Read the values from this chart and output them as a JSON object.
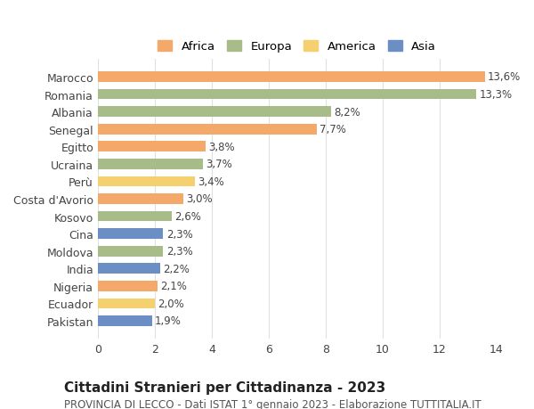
{
  "countries": [
    "Marocco",
    "Romania",
    "Albania",
    "Senegal",
    "Egitto",
    "Ucraina",
    "Perù",
    "Costa d'Avorio",
    "Kosovo",
    "Cina",
    "Moldova",
    "India",
    "Nigeria",
    "Ecuador",
    "Pakistan"
  ],
  "values": [
    13.6,
    13.3,
    8.2,
    7.7,
    3.8,
    3.7,
    3.4,
    3.0,
    2.6,
    2.3,
    2.3,
    2.2,
    2.1,
    2.0,
    1.9
  ],
  "labels": [
    "13,6%",
    "13,3%",
    "8,2%",
    "7,7%",
    "3,8%",
    "3,7%",
    "3,4%",
    "3,0%",
    "2,6%",
    "2,3%",
    "2,3%",
    "2,2%",
    "2,1%",
    "2,0%",
    "1,9%"
  ],
  "continents": [
    "Africa",
    "Europa",
    "Europa",
    "Africa",
    "Africa",
    "Europa",
    "America",
    "Africa",
    "Europa",
    "Asia",
    "Europa",
    "Asia",
    "Africa",
    "America",
    "Asia"
  ],
  "continent_colors": {
    "Africa": "#F4A96A",
    "Europa": "#A8BC8A",
    "America": "#F5D06E",
    "Asia": "#6B8EC4"
  },
  "legend_order": [
    "Africa",
    "Europa",
    "America",
    "Asia"
  ],
  "title": "Cittadini Stranieri per Cittadinanza - 2023",
  "subtitle": "PROVINCIA DI LECCO - Dati ISTAT 1° gennaio 2023 - Elaborazione TUTTITALIA.IT",
  "xlabel": "",
  "xlim": [
    0,
    14
  ],
  "xticks": [
    0,
    2,
    4,
    6,
    8,
    10,
    12,
    14
  ],
  "background_color": "#ffffff",
  "grid_color": "#e0e0e0",
  "title_fontsize": 11,
  "subtitle_fontsize": 8.5,
  "label_fontsize": 8.5,
  "tick_fontsize": 9,
  "bar_height": 0.6
}
